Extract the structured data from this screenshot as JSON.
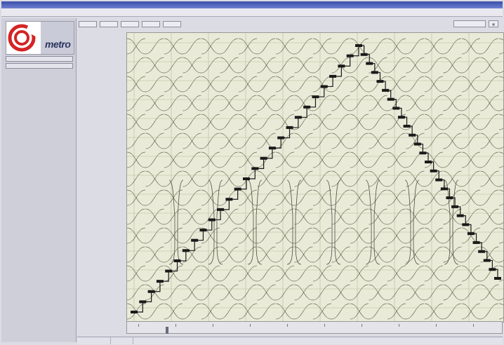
{
  "window": {
    "title": "",
    "menu": ""
  },
  "sidebar": {
    "brand": "metro",
    "button1": "",
    "button2": ""
  },
  "tabs": [
    "",
    "",
    "",
    "",
    "",
    ""
  ],
  "signals": [
    "",
    "",
    "",
    "",
    "",
    "",
    "",
    "",
    "",
    "",
    "",
    "",
    "",
    "",
    ""
  ],
  "status": {
    "cell1": "",
    "cell2": ""
  },
  "colors": {
    "logo_red": "#d42424",
    "plot_bg": "#e9ebd8",
    "trace": "#1a1a1a",
    "grid": "#b8bb9a"
  }
}
